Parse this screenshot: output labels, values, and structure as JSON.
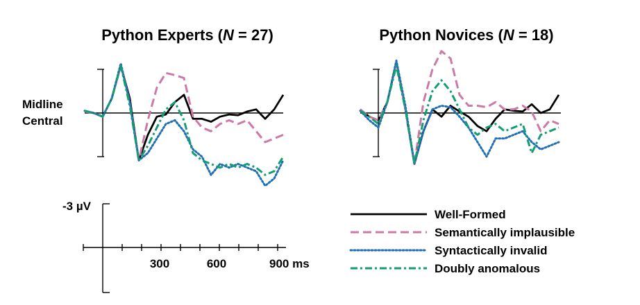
{
  "chart_data": {
    "type": "line",
    "channel_label": [
      "Midline",
      "Central"
    ],
    "colors": {
      "Well-Formed": "#000000",
      "Semantically implausible": "#cc79a7",
      "Syntactically invalid": "#1f6fb5",
      "Doubly anomalous": "#129e72"
    },
    "scale_bar": {
      "label": "-3 µV",
      "value": -3
    },
    "time_axis": {
      "ticks_ms": [
        0,
        100,
        200,
        300,
        400,
        500,
        600,
        700,
        800,
        900
      ],
      "labeled_ticks": [
        "300",
        "600",
        "900 ms"
      ],
      "range_ms": [
        -100,
        1000
      ]
    },
    "y_range_uV": [
      -8,
      6
    ],
    "legend": [
      "Well-Formed",
      "Semantically implausible",
      "Syntactically invalid",
      "Doubly anomalous"
    ],
    "panels": [
      {
        "title_prefix": "Python Experts (",
        "title_n": "N",
        "title_suffix": " = 27)",
        "series": [
          {
            "name": "Well-Formed",
            "style": "solid",
            "points": [
              [
                -100,
                0.2
              ],
              [
                -50,
                0
              ],
              [
                0,
                -0.5
              ],
              [
                50,
                2
              ],
              [
                100,
                6.5
              ],
              [
                150,
                2
              ],
              [
                200,
                -6.5
              ],
              [
                250,
                -3
              ],
              [
                300,
                -0.5
              ],
              [
                350,
                -0.2
              ],
              [
                400,
                1.5
              ],
              [
                450,
                2.5
              ],
              [
                500,
                -0.8
              ],
              [
                550,
                -0.8
              ],
              [
                600,
                -1.2
              ],
              [
                650,
                -0.5
              ],
              [
                700,
                -0.2
              ],
              [
                750,
                -0.3
              ],
              [
                800,
                0.2
              ],
              [
                850,
                0.5
              ],
              [
                900,
                -0.8
              ],
              [
                950,
                0.5
              ],
              [
                1000,
                2.5
              ]
            ]
          },
          {
            "name": "Semantically implausible",
            "style": "dashed",
            "points": [
              [
                -100,
                0.2
              ],
              [
                -50,
                0
              ],
              [
                0,
                -0.5
              ],
              [
                50,
                2
              ],
              [
                100,
                6.5
              ],
              [
                150,
                1.5
              ],
              [
                200,
                -6.5
              ],
              [
                250,
                -1
              ],
              [
                300,
                3.5
              ],
              [
                350,
                5.5
              ],
              [
                400,
                5.2
              ],
              [
                450,
                4.8
              ],
              [
                500,
                -0.5
              ],
              [
                550,
                -2
              ],
              [
                600,
                -2.5
              ],
              [
                650,
                -1.5
              ],
              [
                700,
                -1
              ],
              [
                750,
                -1.5
              ],
              [
                800,
                -1
              ],
              [
                850,
                -2.5
              ],
              [
                900,
                -4
              ],
              [
                950,
                -3.5
              ],
              [
                1000,
                -3
              ]
            ]
          },
          {
            "name": "Syntactically invalid",
            "style": "dotted",
            "points": [
              [
                -100,
                0.3
              ],
              [
                -50,
                0
              ],
              [
                0,
                -0.5
              ],
              [
                50,
                2
              ],
              [
                100,
                6.8
              ],
              [
                150,
                1.5
              ],
              [
                200,
                -6.5
              ],
              [
                250,
                -5.5
              ],
              [
                300,
                -3.5
              ],
              [
                350,
                -1.5
              ],
              [
                400,
                -1
              ],
              [
                450,
                -2.5
              ],
              [
                500,
                -5
              ],
              [
                550,
                -6
              ],
              [
                600,
                -8.5
              ],
              [
                650,
                -7
              ],
              [
                700,
                -7.5
              ],
              [
                750,
                -7
              ],
              [
                800,
                -7.5
              ],
              [
                850,
                -8
              ],
              [
                900,
                -10
              ],
              [
                950,
                -9
              ],
              [
                1000,
                -6.5
              ]
            ]
          },
          {
            "name": "Doubly anomalous",
            "style": "dashdot",
            "points": [
              [
                -100,
                0.3
              ],
              [
                -50,
                0
              ],
              [
                0,
                -0.5
              ],
              [
                50,
                2
              ],
              [
                100,
                6.5
              ],
              [
                150,
                1
              ],
              [
                200,
                -6.5
              ],
              [
                250,
                -4.5
              ],
              [
                300,
                -2
              ],
              [
                350,
                0.5
              ],
              [
                400,
                1.5
              ],
              [
                450,
                -1
              ],
              [
                500,
                -5.5
              ],
              [
                550,
                -6.5
              ],
              [
                600,
                -7
              ],
              [
                650,
                -7.5
              ],
              [
                700,
                -7
              ],
              [
                750,
                -7.5
              ],
              [
                800,
                -7
              ],
              [
                850,
                -7.5
              ],
              [
                900,
                -8.5
              ],
              [
                950,
                -8
              ],
              [
                1000,
                -6
              ]
            ]
          }
        ]
      },
      {
        "title_prefix": "Python Novices (",
        "title_n": "N",
        "title_suffix": " = 18)",
        "series": [
          {
            "name": "Well-Formed",
            "style": "solid",
            "points": [
              [
                -100,
                0.5
              ],
              [
                -50,
                -0.5
              ],
              [
                0,
                -1
              ],
              [
                50,
                1.5
              ],
              [
                100,
                7
              ],
              [
                150,
                0.5
              ],
              [
                200,
                -7
              ],
              [
                250,
                -2.5
              ],
              [
                300,
                0.5
              ],
              [
                350,
                -0.5
              ],
              [
                400,
                1
              ],
              [
                450,
                0.2
              ],
              [
                500,
                -0.5
              ],
              [
                550,
                -1.8
              ],
              [
                600,
                -2.5
              ],
              [
                650,
                -0.8
              ],
              [
                700,
                0.5
              ],
              [
                750,
                0.3
              ],
              [
                800,
                0.2
              ],
              [
                850,
                1.2
              ],
              [
                900,
                0
              ],
              [
                950,
                0.5
              ],
              [
                1000,
                2.5
              ]
            ]
          },
          {
            "name": "Semantically implausible",
            "style": "dashed",
            "points": [
              [
                -100,
                0.5
              ],
              [
                -50,
                -0.5
              ],
              [
                0,
                -1
              ],
              [
                50,
                1.5
              ],
              [
                100,
                7
              ],
              [
                150,
                0.5
              ],
              [
                200,
                -7
              ],
              [
                250,
                1.5
              ],
              [
                300,
                6
              ],
              [
                350,
                8.5
              ],
              [
                400,
                7.5
              ],
              [
                450,
                2.5
              ],
              [
                500,
                1
              ],
              [
                550,
                1
              ],
              [
                600,
                0.8
              ],
              [
                650,
                1.5
              ],
              [
                700,
                0.5
              ],
              [
                750,
                0.5
              ],
              [
                800,
                1
              ],
              [
                850,
                0.2
              ],
              [
                900,
                -2.5
              ],
              [
                950,
                -1
              ],
              [
                1000,
                -1.5
              ]
            ]
          },
          {
            "name": "Syntactically invalid",
            "style": "dotted",
            "points": [
              [
                -100,
                0.3
              ],
              [
                -50,
                -1
              ],
              [
                0,
                -2
              ],
              [
                50,
                1.5
              ],
              [
                100,
                7.2
              ],
              [
                150,
                1
              ],
              [
                200,
                -7
              ],
              [
                250,
                -2.5
              ],
              [
                300,
                0.5
              ],
              [
                350,
                1
              ],
              [
                400,
                0.8
              ],
              [
                450,
                -0.5
              ],
              [
                500,
                -2
              ],
              [
                550,
                -4
              ],
              [
                600,
                -6
              ],
              [
                650,
                -3.5
              ],
              [
                700,
                -3.5
              ],
              [
                750,
                -3
              ],
              [
                800,
                -2.5
              ],
              [
                850,
                -4
              ],
              [
                900,
                -5
              ],
              [
                950,
                -4.5
              ],
              [
                1000,
                -4
              ]
            ]
          },
          {
            "name": "Doubly anomalous",
            "style": "dashdot",
            "points": [
              [
                -100,
                0.3
              ],
              [
                -50,
                -0.5
              ],
              [
                0,
                -1.5
              ],
              [
                50,
                1.5
              ],
              [
                100,
                6.5
              ],
              [
                150,
                0.5
              ],
              [
                200,
                -7
              ],
              [
                250,
                -1
              ],
              [
                300,
                3
              ],
              [
                350,
                4.5
              ],
              [
                400,
                3
              ],
              [
                450,
                0.5
              ],
              [
                500,
                -2
              ],
              [
                550,
                -3
              ],
              [
                600,
                -2
              ],
              [
                650,
                -1.5
              ],
              [
                700,
                -2.5
              ],
              [
                750,
                -2
              ],
              [
                800,
                -1.5
              ],
              [
                850,
                -5.5
              ],
              [
                900,
                -3
              ],
              [
                950,
                -2.5
              ],
              [
                1000,
                -2
              ]
            ]
          }
        ]
      }
    ]
  }
}
